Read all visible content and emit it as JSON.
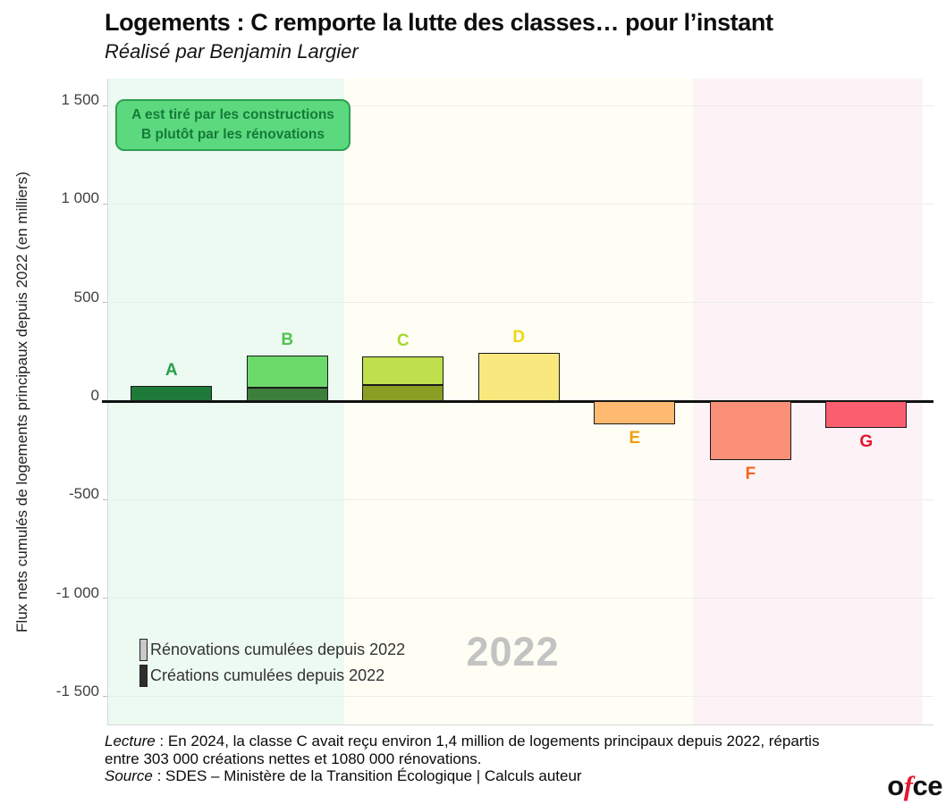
{
  "header": {
    "title": "Logements : C remporte la lutte des classes… pour l’instant",
    "subtitle": "Réalisé par Benjamin Largier"
  },
  "annotation": {
    "line1": "A est tiré par les constructions",
    "line2": "B plutôt par les rénovations",
    "fill_color": "#5cd97f",
    "border_color": "#2e9e52",
    "text_color": "#157a38"
  },
  "watermark": {
    "year": "2022"
  },
  "legend": {
    "items": [
      {
        "label": "Rénovations cumulées depuis 2022",
        "swatch": "light-gray"
      },
      {
        "label": "Créations cumulées depuis 2022",
        "swatch": "dark-gray"
      }
    ]
  },
  "footer": {
    "lecture_label": "Lecture",
    "lecture_text": " : En 2024, la classe C avait reçu environ 1,4 million de logements principaux depuis 2022, répartis",
    "lecture_line2": "entre 303 000 créations nettes et 1080 000 rénovations.",
    "source_label": "Source",
    "source_text": " : SDES – Ministère de la Transition Écologique | Calculs auteur"
  },
  "logo": {
    "part1": "o",
    "part2": "f",
    "part3": "ce"
  },
  "chart_data": {
    "type": "bar",
    "stacked": true,
    "title": "Logements : C remporte la lutte des classes… pour l’instant",
    "xlabel": "",
    "ylabel": "Flux nets cumulés de logements principaux depuis 2022 (en milliers)",
    "unit": "milliers de logements",
    "year_shown": "2022",
    "grid": true,
    "legend_position": "bottom-left",
    "y_axis": {
      "range": [
        -1650,
        1630
      ],
      "ticks": [
        {
          "label": "1 500",
          "value": 1500
        },
        {
          "label": "1 000",
          "value": 1000
        },
        {
          "label": "500",
          "value": 500
        },
        {
          "label": "0",
          "value": 0
        },
        {
          "label": "-500",
          "value": -500
        },
        {
          "label": "-1 000",
          "value": -1000
        },
        {
          "label": "-1 500",
          "value": -1500
        }
      ]
    },
    "series_note": "creations = segment sombre (bas), renovations = segment clair (haut); valeurs en milliers, frame animée année 2022",
    "categories": [
      {
        "label": "A",
        "creations": 75,
        "renovations": 0,
        "total": 75,
        "fill_dark": "#1e7a38",
        "fill_light": "#6cd96b",
        "label_color": "#27a04c"
      },
      {
        "label": "B",
        "creations": 70,
        "renovations": 160,
        "total": 230,
        "fill_dark": "#3c7e3c",
        "fill_light": "#6cd96b",
        "label_color": "#52c350"
      },
      {
        "label": "C",
        "creations": 80,
        "renovations": 145,
        "total": 225,
        "fill_dark": "#8a9e23",
        "fill_light": "#bfe04c",
        "label_color": "#a6d832"
      },
      {
        "label": "D",
        "creations": 0,
        "renovations": 245,
        "total": 245,
        "fill_dark": "#d8c94f",
        "fill_light": "#f9e87e",
        "label_color": "#f2d411"
      },
      {
        "label": "E",
        "creations": 0,
        "renovations": -120,
        "total": -120,
        "fill_dark": "#fdba70",
        "fill_light": "#fdba70",
        "label_color": "#f09c0c"
      },
      {
        "label": "F",
        "creations": 0,
        "renovations": -300,
        "total": -300,
        "fill_dark": "#fa9078",
        "fill_light": "#fa9078",
        "label_color": "#f4661b"
      },
      {
        "label": "G",
        "creations": 0,
        "renovations": -135,
        "total": -135,
        "fill_dark": "#fa5f70",
        "fill_light": "#fa5f70",
        "label_color": "#e8152f"
      }
    ],
    "bands": [
      {
        "zone": "green",
        "covers": "A–B",
        "color": "#ecfaf1"
      },
      {
        "zone": "cream",
        "covers": "C–E",
        "color": "#fffef4"
      },
      {
        "zone": "pink",
        "covers": "F–G",
        "color": "#fdf3f6"
      }
    ]
  }
}
